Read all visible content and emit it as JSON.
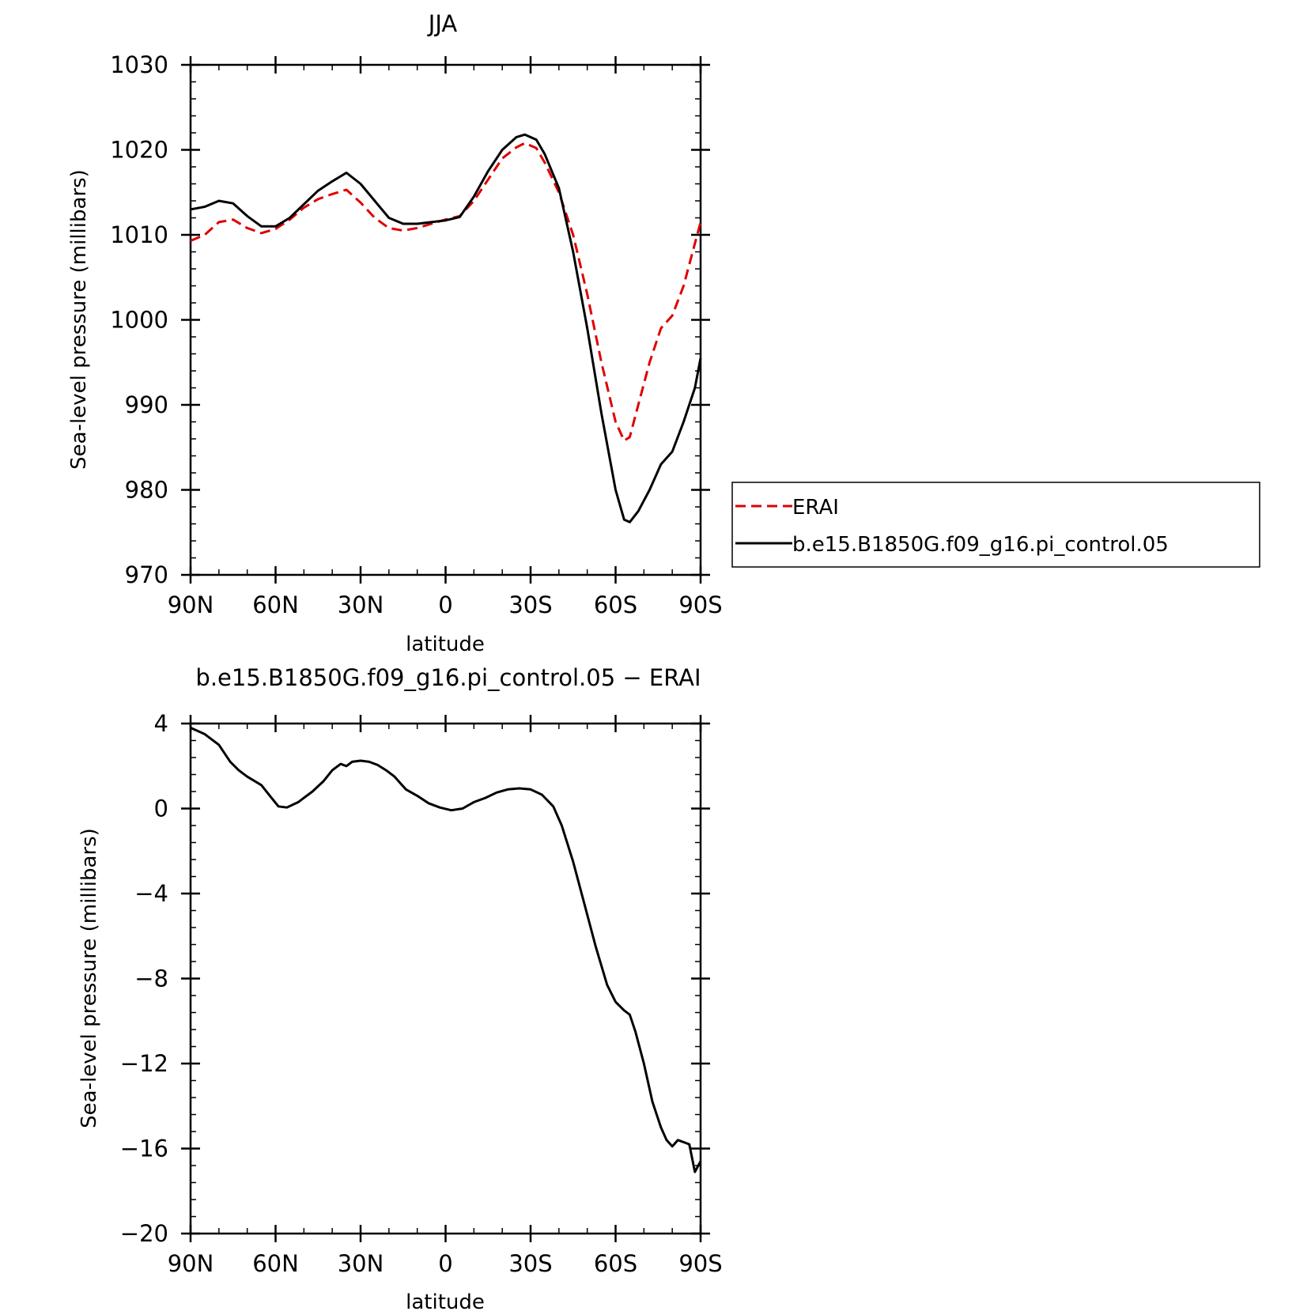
{
  "chart_data": [
    {
      "type": "line",
      "title": "JJA",
      "xlabel": "latitude",
      "ylabel": "Sea-level pressure (millibars)",
      "xlim": [
        90,
        -90
      ],
      "ylim": [
        970,
        1030
      ],
      "x_ticks": [
        {
          "value": 90,
          "label": "90N"
        },
        {
          "value": 60,
          "label": "60N"
        },
        {
          "value": 30,
          "label": "30N"
        },
        {
          "value": 0,
          "label": "0"
        },
        {
          "value": -30,
          "label": "30S"
        },
        {
          "value": -60,
          "label": "60S"
        },
        {
          "value": -90,
          "label": "90S"
        }
      ],
      "y_ticks": [
        {
          "value": 970,
          "label": "970"
        },
        {
          "value": 980,
          "label": "980"
        },
        {
          "value": 990,
          "label": "990"
        },
        {
          "value": 1000,
          "label": "1000"
        },
        {
          "value": 1010,
          "label": "1010"
        },
        {
          "value": 1020,
          "label": "1020"
        },
        {
          "value": 1030,
          "label": "1030"
        }
      ],
      "legend_position": "right",
      "series": [
        {
          "name": "ERAI",
          "color": "#e00000",
          "dash": "dashed",
          "points": [
            [
              90,
              1009.3
            ],
            [
              85,
              1010
            ],
            [
              80,
              1011.5
            ],
            [
              75,
              1011.8
            ],
            [
              70,
              1010.8
            ],
            [
              65,
              1010.2
            ],
            [
              60,
              1010.7
            ],
            [
              55,
              1011.8
            ],
            [
              50,
              1013.2
            ],
            [
              45,
              1014.2
            ],
            [
              40,
              1014.8
            ],
            [
              35,
              1015.3
            ],
            [
              30,
              1013.8
            ],
            [
              25,
              1012
            ],
            [
              20,
              1010.8
            ],
            [
              15,
              1010.5
            ],
            [
              10,
              1010.8
            ],
            [
              5,
              1011.3
            ],
            [
              0,
              1011.8
            ],
            [
              -5,
              1012.2
            ],
            [
              -10,
              1014
            ],
            [
              -15,
              1016.5
            ],
            [
              -20,
              1019
            ],
            [
              -25,
              1020.3
            ],
            [
              -28,
              1020.8
            ],
            [
              -32,
              1020.2
            ],
            [
              -35,
              1018.5
            ],
            [
              -40,
              1015
            ],
            [
              -45,
              1010
            ],
            [
              -50,
              1003
            ],
            [
              -55,
              995
            ],
            [
              -60,
              988
            ],
            [
              -63,
              985.8
            ],
            [
              -65,
              986.2
            ],
            [
              -68,
              990
            ],
            [
              -72,
              995
            ],
            [
              -76,
              999
            ],
            [
              -80,
              1000.5
            ],
            [
              -84,
              1004
            ],
            [
              -90,
              1011.5
            ]
          ]
        },
        {
          "name": "b.e15.B1850G.f09_g16.pi_control.05",
          "color": "#000000",
          "dash": "solid",
          "points": [
            [
              90,
              1013
            ],
            [
              85,
              1013.3
            ],
            [
              80,
              1014
            ],
            [
              75,
              1013.7
            ],
            [
              70,
              1012.2
            ],
            [
              65,
              1011
            ],
            [
              60,
              1011
            ],
            [
              55,
              1012
            ],
            [
              50,
              1013.6
            ],
            [
              45,
              1015.2
            ],
            [
              40,
              1016.3
            ],
            [
              35,
              1017.3
            ],
            [
              30,
              1016
            ],
            [
              25,
              1014
            ],
            [
              20,
              1012
            ],
            [
              15,
              1011.3
            ],
            [
              10,
              1011.3
            ],
            [
              5,
              1011.5
            ],
            [
              0,
              1011.7
            ],
            [
              -5,
              1012.1
            ],
            [
              -10,
              1014.5
            ],
            [
              -15,
              1017.5
            ],
            [
              -20,
              1020
            ],
            [
              -25,
              1021.5
            ],
            [
              -28,
              1021.8
            ],
            [
              -32,
              1021.2
            ],
            [
              -35,
              1019.5
            ],
            [
              -40,
              1015.5
            ],
            [
              -45,
              1008
            ],
            [
              -50,
              999
            ],
            [
              -55,
              989
            ],
            [
              -60,
              980
            ],
            [
              -63,
              976.5
            ],
            [
              -65,
              976.2
            ],
            [
              -68,
              977.5
            ],
            [
              -72,
              980
            ],
            [
              -76,
              983
            ],
            [
              -80,
              984.5
            ],
            [
              -84,
              988
            ],
            [
              -88,
              992
            ],
            [
              -90,
              995.5
            ]
          ]
        }
      ]
    },
    {
      "type": "line",
      "title": "b.e15.B1850G.f09_g16.pi_control.05 − ERAI",
      "xlabel": "latitude",
      "ylabel": "Sea-level pressure (millibars)",
      "xlim": [
        90,
        -90
      ],
      "ylim": [
        -20,
        4
      ],
      "x_ticks": [
        {
          "value": 90,
          "label": "90N"
        },
        {
          "value": 60,
          "label": "60N"
        },
        {
          "value": 30,
          "label": "30N"
        },
        {
          "value": 0,
          "label": "0"
        },
        {
          "value": -30,
          "label": "30S"
        },
        {
          "value": -60,
          "label": "60S"
        },
        {
          "value": -90,
          "label": "90S"
        }
      ],
      "y_ticks": [
        {
          "value": -20,
          "label": "−20"
        },
        {
          "value": -16,
          "label": "−16"
        },
        {
          "value": -12,
          "label": "−12"
        },
        {
          "value": -8,
          "label": "−8"
        },
        {
          "value": -4,
          "label": "−4"
        },
        {
          "value": 0,
          "label": "0"
        },
        {
          "value": 4,
          "label": "4"
        }
      ],
      "series": [
        {
          "name": "",
          "color": "#000000",
          "dash": "solid",
          "points": [
            [
              90,
              3.8
            ],
            [
              85,
              3.5
            ],
            [
              80,
              3
            ],
            [
              76,
              2.2
            ],
            [
              73,
              1.8
            ],
            [
              70,
              1.5
            ],
            [
              65,
              1.1
            ],
            [
              62,
              0.6
            ],
            [
              59,
              0.1
            ],
            [
              56,
              0.05
            ],
            [
              52,
              0.3
            ],
            [
              47,
              0.8
            ],
            [
              43,
              1.3
            ],
            [
              40,
              1.8
            ],
            [
              37,
              2.1
            ],
            [
              35,
              2
            ],
            [
              33,
              2.2
            ],
            [
              30,
              2.25
            ],
            [
              27,
              2.2
            ],
            [
              24,
              2.05
            ],
            [
              21,
              1.8
            ],
            [
              18,
              1.5
            ],
            [
              14,
              0.9
            ],
            [
              10,
              0.6
            ],
            [
              6,
              0.25
            ],
            [
              2,
              0.05
            ],
            [
              -2,
              -0.08
            ],
            [
              -6,
              0
            ],
            [
              -10,
              0.3
            ],
            [
              -14,
              0.5
            ],
            [
              -18,
              0.75
            ],
            [
              -22,
              0.9
            ],
            [
              -26,
              0.95
            ],
            [
              -30,
              0.9
            ],
            [
              -34,
              0.65
            ],
            [
              -38,
              0.1
            ],
            [
              -41,
              -0.8
            ],
            [
              -45,
              -2.5
            ],
            [
              -49,
              -4.5
            ],
            [
              -53,
              -6.5
            ],
            [
              -57,
              -8.3
            ],
            [
              -60,
              -9.1
            ],
            [
              -63,
              -9.5
            ],
            [
              -65,
              -9.7
            ],
            [
              -67,
              -10.5
            ],
            [
              -70,
              -12
            ],
            [
              -73,
              -13.8
            ],
            [
              -76,
              -15
            ],
            [
              -78,
              -15.6
            ],
            [
              -80,
              -15.9
            ],
            [
              -82,
              -15.6
            ],
            [
              -84,
              -15.7
            ],
            [
              -86,
              -15.8
            ],
            [
              -88,
              -17.1
            ],
            [
              -90,
              -16.6
            ]
          ]
        }
      ]
    }
  ]
}
